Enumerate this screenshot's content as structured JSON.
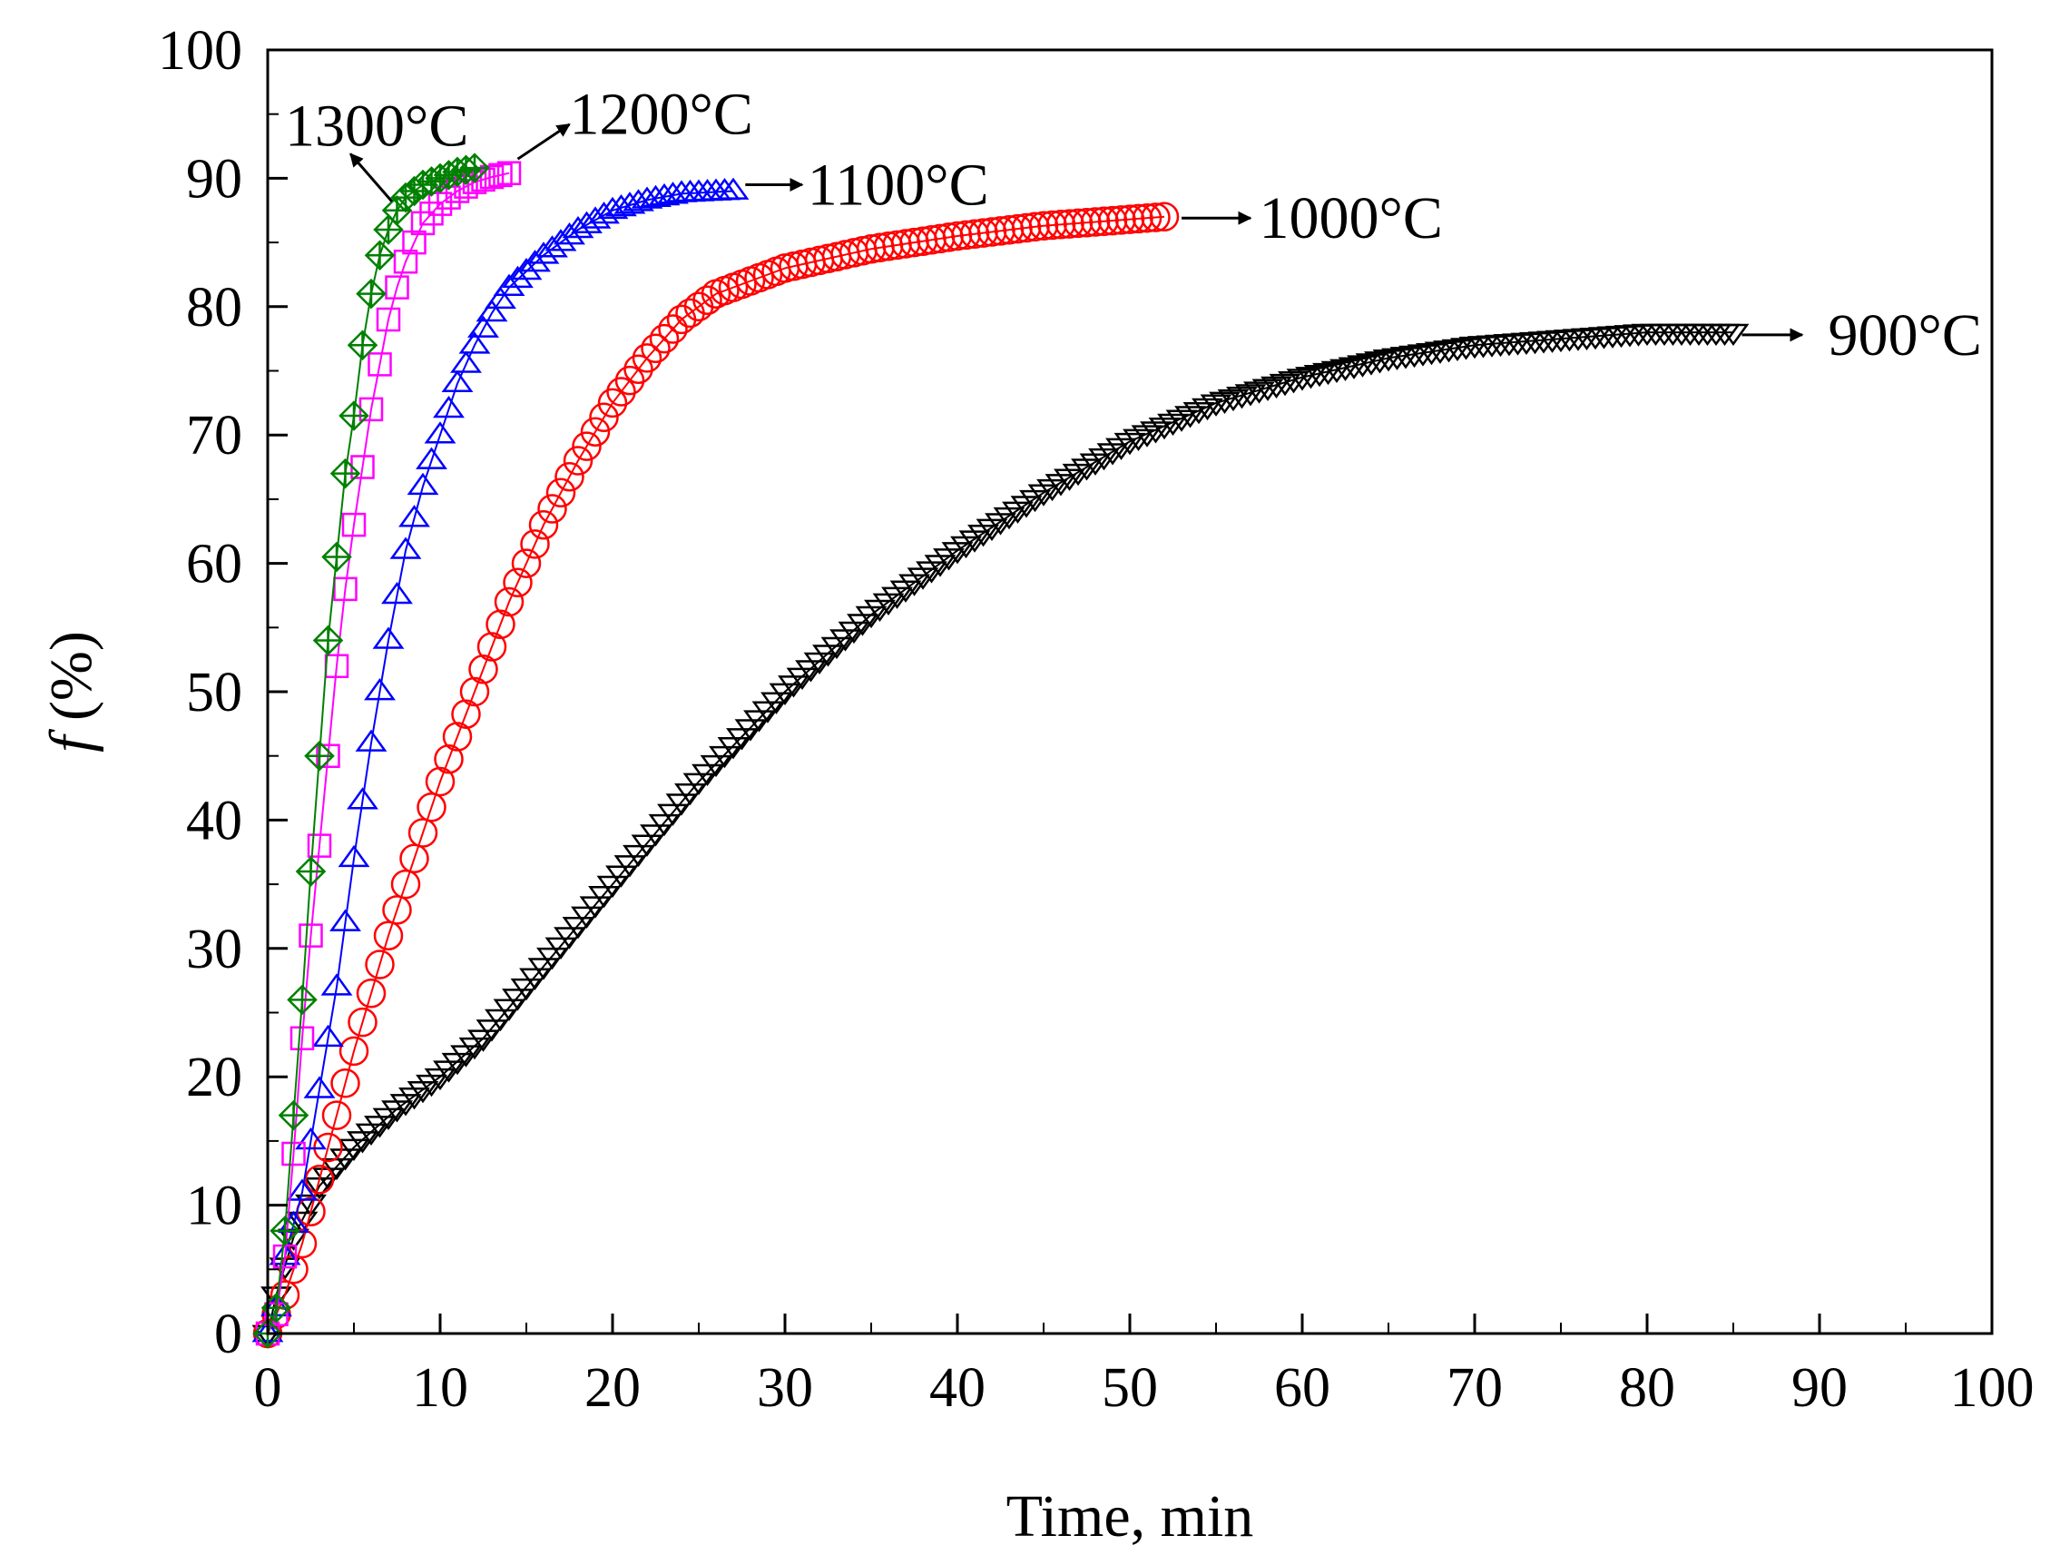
{
  "chart_data": {
    "type": "scatter",
    "title": "",
    "xlabel": "Time, min",
    "ylabel_italic": "f",
    "ylabel_rest": " (%)",
    "xlim": [
      0,
      100
    ],
    "ylim": [
      0,
      100
    ],
    "x_ticks": [
      0,
      10,
      20,
      30,
      40,
      50,
      60,
      70,
      80,
      90,
      100
    ],
    "y_ticks": [
      0,
      10,
      20,
      30,
      40,
      50,
      60,
      70,
      80,
      90,
      100
    ],
    "grid": false,
    "series": [
      {
        "name": "900°C",
        "color": "#000000",
        "marker": "triangle-down",
        "end_time": 85,
        "points": [
          [
            0,
            0
          ],
          [
            0.5,
            3
          ],
          [
            1.5,
            7.5
          ],
          [
            3,
            11.5
          ],
          [
            5,
            14.5
          ],
          [
            7.5,
            17.5
          ],
          [
            10,
            20
          ],
          [
            12.5,
            23
          ],
          [
            15,
            27
          ],
          [
            20,
            35
          ],
          [
            25,
            43
          ],
          [
            30,
            50
          ],
          [
            35,
            56
          ],
          [
            40,
            61
          ],
          [
            45,
            65.5
          ],
          [
            50,
            69.5
          ],
          [
            55,
            72.5
          ],
          [
            60,
            74.5
          ],
          [
            65,
            76
          ],
          [
            70,
            77
          ],
          [
            75,
            77.5
          ],
          [
            80,
            78
          ],
          [
            85,
            78
          ]
        ]
      },
      {
        "name": "1000°C",
        "color": "#ff0000",
        "marker": "circle",
        "end_time": 52,
        "points": [
          [
            0,
            0
          ],
          [
            1,
            3
          ],
          [
            2,
            7
          ],
          [
            3,
            12
          ],
          [
            4,
            17
          ],
          [
            5,
            22
          ],
          [
            6,
            26.5
          ],
          [
            7,
            31
          ],
          [
            8,
            35
          ],
          [
            9,
            39
          ],
          [
            10,
            43
          ],
          [
            12,
            50
          ],
          [
            14,
            57
          ],
          [
            16,
            63
          ],
          [
            18,
            68
          ],
          [
            20,
            72.5
          ],
          [
            22,
            76
          ],
          [
            24,
            79
          ],
          [
            26,
            81
          ],
          [
            28,
            82
          ],
          [
            30,
            83
          ],
          [
            35,
            84.5
          ],
          [
            40,
            85.5
          ],
          [
            45,
            86.3
          ],
          [
            50,
            86.8
          ],
          [
            52,
            87
          ]
        ]
      },
      {
        "name": "1100°C",
        "color": "#0000ff",
        "marker": "triangle-up",
        "end_time": 27,
        "points": [
          [
            0,
            0
          ],
          [
            0.5,
            2
          ],
          [
            1,
            6
          ],
          [
            2,
            11
          ],
          [
            3,
            19
          ],
          [
            4,
            27
          ],
          [
            5,
            37
          ],
          [
            6,
            46
          ],
          [
            7,
            54
          ],
          [
            8,
            61
          ],
          [
            9,
            66
          ],
          [
            10,
            70
          ],
          [
            11,
            74
          ],
          [
            12,
            77
          ],
          [
            13,
            79.5
          ],
          [
            14,
            81.5
          ],
          [
            16,
            84
          ],
          [
            18,
            86
          ],
          [
            20,
            87.5
          ],
          [
            22,
            88.3
          ],
          [
            24,
            88.8
          ],
          [
            27,
            89
          ]
        ]
      },
      {
        "name": "1200°C",
        "color": "#ff00ff",
        "marker": "square",
        "end_time": 14,
        "points": [
          [
            0,
            0
          ],
          [
            0.5,
            1.5
          ],
          [
            1,
            6
          ],
          [
            1.5,
            14
          ],
          [
            2,
            23
          ],
          [
            2.5,
            31
          ],
          [
            3,
            38
          ],
          [
            3.5,
            45
          ],
          [
            4,
            52
          ],
          [
            4.5,
            58
          ],
          [
            5,
            63
          ],
          [
            5.5,
            67.5
          ],
          [
            6,
            72
          ],
          [
            6.5,
            75.5
          ],
          [
            7,
            79
          ],
          [
            7.5,
            81.5
          ],
          [
            8,
            83.5
          ],
          [
            9,
            86.5
          ],
          [
            10,
            88
          ],
          [
            11,
            89
          ],
          [
            12,
            89.7
          ],
          [
            13,
            90.1
          ],
          [
            14,
            90.4
          ]
        ]
      },
      {
        "name": "1300°C",
        "color": "#008000",
        "marker": "diamond-plus",
        "end_time": 12,
        "points": [
          [
            0,
            0
          ],
          [
            0.5,
            2
          ],
          [
            1,
            8
          ],
          [
            1.5,
            17
          ],
          [
            2,
            26
          ],
          [
            2.5,
            36
          ],
          [
            3,
            45
          ],
          [
            3.5,
            54
          ],
          [
            4,
            60.5
          ],
          [
            4.5,
            67
          ],
          [
            5,
            71.5
          ],
          [
            5.5,
            77
          ],
          [
            6,
            81
          ],
          [
            6.5,
            84
          ],
          [
            7,
            86
          ],
          [
            7.5,
            87.5
          ],
          [
            8,
            88.5
          ],
          [
            9,
            89.5
          ],
          [
            10,
            90
          ],
          [
            11,
            90.5
          ],
          [
            12,
            90.8
          ]
        ]
      }
    ],
    "annotations": [
      {
        "series": "900°C",
        "text": "900°C",
        "arrow_from": [
          85.5,
          77.8
        ],
        "arrow_to": [
          89,
          77.8
        ],
        "text_at": [
          90.5,
          77.8
        ],
        "anchor": "start"
      },
      {
        "series": "1000°C",
        "text": "1000°C",
        "arrow_from": [
          53,
          86.9
        ],
        "arrow_to": [
          57,
          86.9
        ],
        "text_at": [
          57.5,
          86.9
        ],
        "anchor": "start"
      },
      {
        "series": "1100°C",
        "text": "1100°C",
        "arrow_from": [
          27.7,
          89.5
        ],
        "arrow_to": [
          31,
          89.5
        ],
        "text_at": [
          31.3,
          89.5
        ],
        "anchor": "start"
      },
      {
        "series": "1200°C",
        "text": "1200°C",
        "arrow_from": [
          14.5,
          91.5
        ],
        "arrow_to": [
          17.5,
          94.2
        ],
        "text_at": [
          17.5,
          95
        ],
        "anchor": "start"
      },
      {
        "series": "1300°C",
        "text": "1300°C",
        "arrow_from": [
          7.2,
          88.2
        ],
        "arrow_to": [
          4.8,
          91.9
        ],
        "text_at": [
          1,
          94.1
        ],
        "anchor": "start"
      }
    ]
  }
}
